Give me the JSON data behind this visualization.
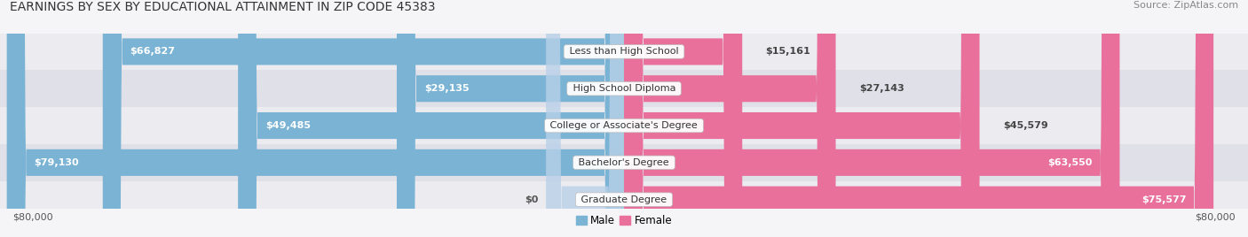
{
  "title": "EARNINGS BY SEX BY EDUCATIONAL ATTAINMENT IN ZIP CODE 45383",
  "source": "Source: ZipAtlas.com",
  "categories": [
    "Less than High School",
    "High School Diploma",
    "College or Associate's Degree",
    "Bachelor's Degree",
    "Graduate Degree"
  ],
  "male_values": [
    66827,
    29135,
    49485,
    79130,
    0
  ],
  "female_values": [
    15161,
    27143,
    45579,
    63550,
    75577
  ],
  "male_color": "#7ab3d4",
  "female_color": "#e8709a",
  "male_stub_color": "#b8d0e8",
  "row_bg_colors": [
    "#ebebf0",
    "#e0e0e8"
  ],
  "max_value": 80000,
  "axis_label_left": "$80,000",
  "axis_label_right": "$80,000",
  "axis_label_center": "$0",
  "title_fontsize": 10,
  "source_fontsize": 8,
  "bar_label_fontsize": 8,
  "category_fontsize": 8,
  "legend_fontsize": 8.5,
  "axis_tick_fontsize": 8
}
